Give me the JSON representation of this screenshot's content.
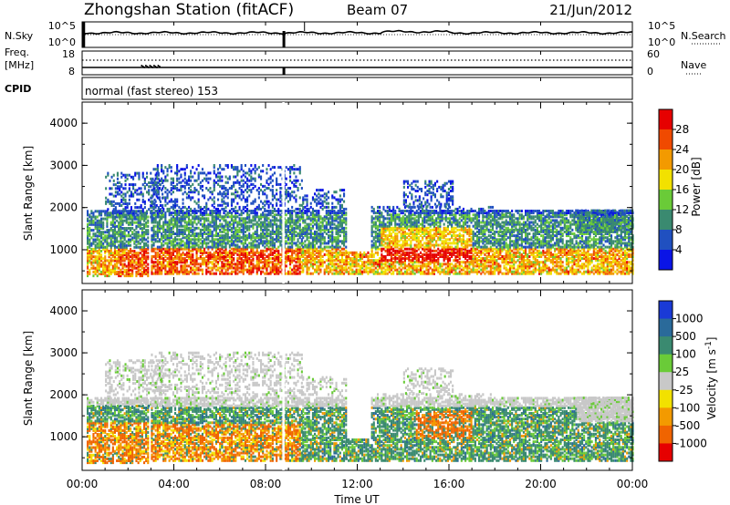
{
  "header": {
    "station": "Zhongshan Station (fitACF)",
    "beam": "Beam 07",
    "date": "21/Jun/2012"
  },
  "top_panels": {
    "nsky_label": "N.Sky",
    "nsearch_label": "N.Search",
    "noise_ticks": [
      "10^5",
      "10^0"
    ],
    "freq_label": "Freq.",
    "freq_unit": "[MHz]",
    "freq_ticks": [
      "18",
      "8"
    ],
    "nave_label": "Nave",
    "nave_ticks": [
      "60",
      "0"
    ],
    "cpid_label": "CPID",
    "cpid_text": "normal (fast stereo) 153"
  },
  "chart_data": [
    {
      "type": "heatmap",
      "name": "power",
      "ylabel": "Slant Range [km]",
      "xlabel": "",
      "ylim": [
        200,
        4500
      ],
      "yticks": [
        "1000",
        "2000",
        "3000",
        "4000"
      ],
      "colorbar_label": "Power [dB]",
      "colorbar_ticks": [
        "4",
        "8",
        "12",
        "16",
        "20",
        "24",
        "28"
      ],
      "colorbar_colors": [
        "#0a14e6",
        "#2050c0",
        "#3a8a70",
        "#6acb38",
        "#f2e100",
        "#f39a00",
        "#f04a00",
        "#e60000"
      ],
      "echo_regions_hours_km": [
        {
          "t": [
            0.2,
            2.9
          ],
          "r": [
            350,
            1900
          ]
        },
        {
          "t": [
            1.0,
            3.5
          ],
          "r": [
            1700,
            2800
          ]
        },
        {
          "t": [
            3.0,
            9.6
          ],
          "r": [
            400,
            3000
          ]
        },
        {
          "t": [
            9.6,
            11.5
          ],
          "r": [
            400,
            2400
          ]
        },
        {
          "t": [
            11.5,
            12.6
          ],
          "r": [
            400,
            900
          ]
        },
        {
          "t": [
            12.6,
            18.2
          ],
          "r": [
            400,
            2000
          ]
        },
        {
          "t": [
            14.0,
            16.2
          ],
          "r": [
            2000,
            2600
          ]
        },
        {
          "t": [
            18.2,
            24.0
          ],
          "r": [
            400,
            1900
          ]
        },
        {
          "t": [
            21.5,
            24.0
          ],
          "r": [
            1400,
            1900
          ]
        }
      ]
    },
    {
      "type": "heatmap",
      "name": "velocity",
      "ylabel": "Slant Range [km]",
      "xlabel": "Time UT",
      "ylim": [
        200,
        4500
      ],
      "yticks": [
        "1000",
        "2000",
        "3000",
        "4000"
      ],
      "xticks": [
        "00:00",
        "04:00",
        "08:00",
        "12:00",
        "16:00",
        "20:00",
        "00:00"
      ],
      "colorbar_label": "Velocity [m s-1]",
      "colorbar_ticks": [
        "1000",
        "500",
        "100",
        "25",
        "-25",
        "-100",
        "-500",
        "-1000"
      ],
      "colorbar_colors": [
        "#1a3ad6",
        "#2a6a9a",
        "#3a8a70",
        "#6acb38",
        "#c8c8c8",
        "#f2e100",
        "#f39a00",
        "#f06400",
        "#e60000"
      ]
    }
  ]
}
